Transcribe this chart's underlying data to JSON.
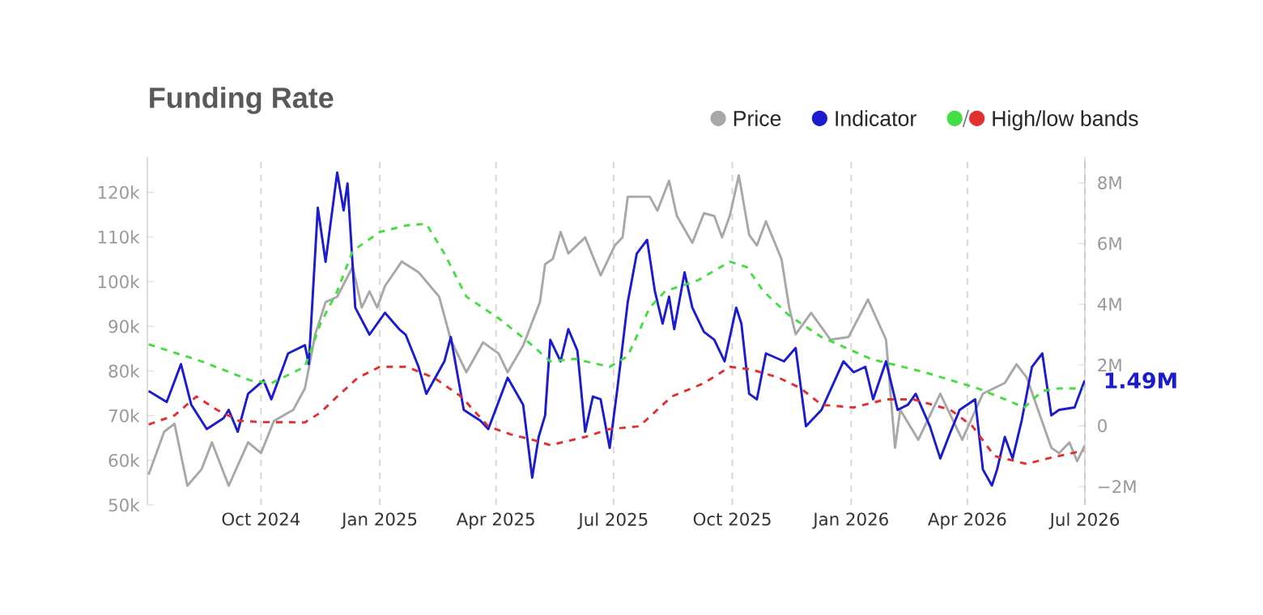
{
  "chart_data": {
    "type": "line",
    "title": "Funding Rate",
    "xlim": [
      "2024-07-05",
      "2026-07-01"
    ],
    "xticks": [
      {
        "value": "2024-10-01",
        "label": "Oct 2024"
      },
      {
        "value": "2025-01-01",
        "label": "Jan 2025"
      },
      {
        "value": "2025-04-01",
        "label": "Apr 2025"
      },
      {
        "value": "2025-07-01",
        "label": "Jul 2025"
      },
      {
        "value": "2025-10-01",
        "label": "Oct 2025"
      },
      {
        "value": "2026-01-01",
        "label": "Jan 2026"
      },
      {
        "value": "2026-04-01",
        "label": "Apr 2026"
      },
      {
        "value": "2026-07-01",
        "label": "Jul 2026"
      }
    ],
    "ylim": [
      50000,
      127900
    ],
    "yticks": [
      {
        "value": 50000,
        "label": "50k"
      },
      {
        "value": 60000,
        "label": "60k"
      },
      {
        "value": 70000,
        "label": "70k"
      },
      {
        "value": 80000,
        "label": "80k"
      },
      {
        "value": 90000,
        "label": "90k"
      },
      {
        "value": 100000,
        "label": "100k"
      },
      {
        "value": 110000,
        "label": "110k"
      },
      {
        "value": 120000,
        "label": "120k"
      }
    ],
    "y2lim": [
      -2610000,
      8850000
    ],
    "y2ticks": [
      {
        "value": -2000000,
        "label": "−2M"
      },
      {
        "value": 0,
        "label": "0"
      },
      {
        "value": 2000000,
        "label": "2M"
      },
      {
        "value": 4000000,
        "label": "4M"
      },
      {
        "value": 6000000,
        "label": "6M"
      },
      {
        "value": 8000000,
        "label": "8M"
      }
    ],
    "grid": "x",
    "legend": "top right",
    "annotations": [
      "1.49M"
    ],
    "series": [
      {
        "name": "Price",
        "color": "#a8a8a8",
        "line_style": "solid",
        "x": [
          "2024-07-06",
          "2024-07-18",
          "2024-07-26",
          "2024-08-05",
          "2024-08-16",
          "2024-08-24",
          "2024-09-06",
          "2024-09-21",
          "2024-10-01",
          "2024-10-11",
          "2024-10-26",
          "2024-11-04",
          "2024-11-12",
          "2024-11-20",
          "2024-11-29",
          "2024-12-11",
          "2024-12-18",
          "2024-12-24",
          "2024-12-30",
          "2025-01-05",
          "2025-01-18",
          "2025-01-31",
          "2025-02-16",
          "2025-02-25",
          "2025-03-09",
          "2025-03-22",
          "2025-04-03",
          "2025-04-10",
          "2025-04-22",
          "2025-05-05",
          "2025-05-09",
          "2025-05-15",
          "2025-05-21",
          "2025-05-27",
          "2025-06-09",
          "2025-06-21",
          "2025-07-02",
          "2025-07-08",
          "2025-07-12",
          "2025-07-29",
          "2025-08-04",
          "2025-08-13",
          "2025-08-19",
          "2025-08-31",
          "2025-09-09",
          "2025-09-17",
          "2025-09-23",
          "2025-09-29",
          "2025-10-06",
          "2025-10-14",
          "2025-10-20",
          "2025-10-27",
          "2025-11-08",
          "2025-11-14",
          "2025-11-19",
          "2025-12-01",
          "2025-12-16",
          "2025-12-30",
          "2026-01-14",
          "2026-01-28",
          "2026-02-04",
          "2026-02-08",
          "2026-02-22",
          "2026-03-11",
          "2026-03-28",
          "2026-04-13",
          "2026-04-30",
          "2026-05-09",
          "2026-05-17",
          "2026-06-05",
          "2026-06-11",
          "2026-06-19",
          "2026-06-25",
          "2026-07-01"
        ],
        "values": [
          56800,
          66400,
          68200,
          54300,
          58000,
          64000,
          54300,
          64000,
          61600,
          68800,
          71300,
          76100,
          88200,
          95400,
          96600,
          103300,
          94200,
          97800,
          94200,
          99000,
          104500,
          102100,
          96600,
          87000,
          79700,
          86400,
          83900,
          79700,
          85700,
          95400,
          103900,
          105100,
          111100,
          106300,
          109900,
          101400,
          108100,
          109900,
          119000,
          119000,
          115900,
          122600,
          114700,
          108700,
          115300,
          114700,
          109900,
          114700,
          123800,
          110500,
          108100,
          113500,
          105100,
          94200,
          88200,
          93000,
          87000,
          87600,
          96000,
          87000,
          62800,
          71300,
          64600,
          74900,
          64600,
          74900,
          77300,
          81500,
          78500,
          62800,
          61600,
          64000,
          59800,
          63400
        ]
      },
      {
        "name": "Indicator",
        "color": "#1c1ccf",
        "axis": "y2",
        "line_style": "solid",
        "x": [
          "2024-07-06",
          "2024-07-20",
          "2024-07-31",
          "2024-08-08",
          "2024-08-20",
          "2024-09-02",
          "2024-09-06",
          "2024-09-13",
          "2024-09-21",
          "2024-10-03",
          "2024-10-09",
          "2024-10-22",
          "2024-11-04",
          "2024-11-07",
          "2024-11-14",
          "2024-11-20",
          "2024-11-29",
          "2024-12-04",
          "2024-12-07",
          "2024-12-13",
          "2024-12-24",
          "2025-01-05",
          "2025-01-16",
          "2025-01-21",
          "2025-01-31",
          "2025-02-06",
          "2025-02-20",
          "2025-02-25",
          "2025-03-07",
          "2025-03-20",
          "2025-03-26",
          "2025-04-10",
          "2025-04-22",
          "2025-04-29",
          "2025-05-04",
          "2025-05-09",
          "2025-05-13",
          "2025-05-21",
          "2025-05-27",
          "2025-06-03",
          "2025-06-09",
          "2025-06-15",
          "2025-06-21",
          "2025-06-28",
          "2025-07-04",
          "2025-07-12",
          "2025-07-19",
          "2025-07-27",
          "2025-08-02",
          "2025-08-08",
          "2025-08-13",
          "2025-08-17",
          "2025-08-25",
          "2025-08-31",
          "2025-09-09",
          "2025-09-17",
          "2025-09-25",
          "2025-10-04",
          "2025-10-08",
          "2025-10-14",
          "2025-10-20",
          "2025-10-27",
          "2025-11-10",
          "2025-11-19",
          "2025-11-27",
          "2025-12-09",
          "2025-12-26",
          "2026-01-03",
          "2026-01-12",
          "2026-01-18",
          "2026-01-28",
          "2026-02-06",
          "2026-02-14",
          "2026-02-20",
          "2026-03-03",
          "2026-03-11",
          "2026-03-19",
          "2026-03-26",
          "2026-04-07",
          "2026-04-13",
          "2026-04-20",
          "2026-04-24",
          "2026-04-30",
          "2026-05-06",
          "2026-05-13",
          "2026-05-21",
          "2026-05-29",
          "2026-06-05",
          "2026-06-11",
          "2026-06-23",
          "2026-06-30",
          "2026-07-01"
        ],
        "values": [
          1140000,
          780000,
          2030000,
          690000,
          -110000,
          250000,
          520000,
          -200000,
          1050000,
          1490000,
          870000,
          2380000,
          2650000,
          2030000,
          7180000,
          5400000,
          8340000,
          7090000,
          7980000,
          3890000,
          3000000,
          3720000,
          3180000,
          3000000,
          1940000,
          1050000,
          2120000,
          2920000,
          520000,
          160000,
          -110000,
          1580000,
          690000,
          -1710000,
          -370000,
          340000,
          2830000,
          2120000,
          3180000,
          2470000,
          -200000,
          960000,
          870000,
          -730000,
          1230000,
          4070000,
          5670000,
          6120000,
          4430000,
          3360000,
          4250000,
          3180000,
          5050000,
          3890000,
          3090000,
          2830000,
          2120000,
          3890000,
          3360000,
          1050000,
          870000,
          2380000,
          2120000,
          2560000,
          -20000,
          520000,
          2120000,
          1760000,
          1940000,
          870000,
          2120000,
          520000,
          690000,
          1050000,
          -20000,
          -1080000,
          -200000,
          520000,
          870000,
          -1440000,
          -1970000,
          -1440000,
          -370000,
          -1080000,
          160000,
          1940000,
          2380000,
          340000,
          520000,
          600000,
          1400000,
          1490000
        ]
      },
      {
        "color": "#44dd44",
        "axis": "y2",
        "line_style": "dashed",
        "x": [
          "2024-07-06",
          "2024-08-16",
          "2024-09-23",
          "2024-10-09",
          "2024-11-04",
          "2024-11-16",
          "2024-11-29",
          "2024-12-11",
          "2025-01-01",
          "2025-01-22",
          "2025-02-06",
          "2025-02-20",
          "2025-03-09",
          "2025-04-03",
          "2025-04-24",
          "2025-05-13",
          "2025-06-01",
          "2025-06-28",
          "2025-07-12",
          "2025-07-29",
          "2025-08-10",
          "2025-09-04",
          "2025-09-29",
          "2025-10-12",
          "2025-10-25",
          "2025-11-14",
          "2025-12-09",
          "2026-01-16",
          "2026-02-27",
          "2026-04-09",
          "2026-04-30",
          "2026-05-15",
          "2026-05-29",
          "2026-06-11",
          "2026-06-30"
        ],
        "values": [
          2680000,
          2120000,
          1490000,
          1400000,
          1940000,
          3360000,
          4430000,
          5760000,
          6380000,
          6600000,
          6650000,
          5670000,
          4250000,
          3540000,
          2830000,
          2120000,
          2200000,
          1940000,
          2290000,
          3890000,
          4430000,
          4780000,
          5400000,
          5230000,
          4430000,
          3630000,
          2920000,
          2200000,
          1760000,
          1230000,
          870000,
          600000,
          1140000,
          1230000,
          1230000
        ]
      },
      {
        "name": "High/low bands",
        "color": "#e03030",
        "axis": "y2",
        "line_style": "dashed",
        "x": [
          "2024-07-06",
          "2024-07-26",
          "2024-08-12",
          "2024-08-28",
          "2024-09-14",
          "2024-10-01",
          "2024-11-04",
          "2024-11-16",
          "2024-11-29",
          "2024-12-15",
          "2025-01-01",
          "2025-01-22",
          "2025-02-12",
          "2025-03-05",
          "2025-03-26",
          "2025-04-12",
          "2025-04-29",
          "2025-05-13",
          "2025-06-09",
          "2025-06-28",
          "2025-07-21",
          "2025-08-15",
          "2025-09-09",
          "2025-09-29",
          "2025-10-16",
          "2025-11-06",
          "2025-11-23",
          "2025-12-09",
          "2026-01-03",
          "2026-01-28",
          "2026-02-18",
          "2026-03-19",
          "2026-04-05",
          "2026-04-22",
          "2026-05-17",
          "2026-06-02",
          "2026-06-30"
        ],
        "values": [
          40000,
          340000,
          960000,
          520000,
          160000,
          120000,
          110000,
          430000,
          960000,
          1580000,
          1940000,
          1940000,
          1580000,
          960000,
          -20000,
          -280000,
          -460000,
          -640000,
          -370000,
          -110000,
          -20000,
          960000,
          1400000,
          1940000,
          1850000,
          1580000,
          1230000,
          690000,
          600000,
          870000,
          870000,
          520000,
          -20000,
          -1000000,
          -1260000,
          -1080000,
          -820000
        ]
      }
    ]
  }
}
